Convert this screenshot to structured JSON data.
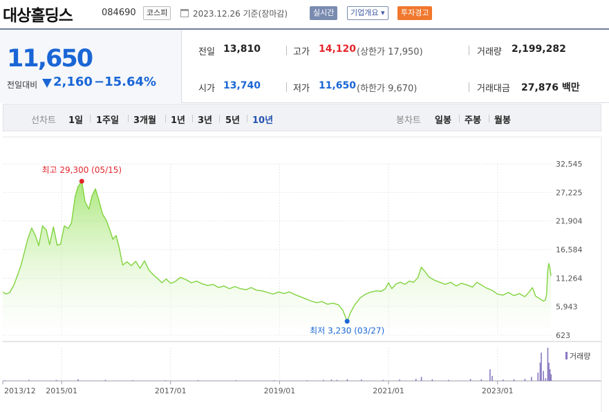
{
  "header": {
    "stock_name": "대상홀딩스",
    "stock_code": "084690",
    "market": "코스피",
    "date_text": "2023.12.26  기준(장마감)",
    "realtime_label": "실시간",
    "company_label": "기업개요 ▾",
    "warning_label": "투자경고"
  },
  "quote": {
    "price": "11,650",
    "prev_label": "전일대비",
    "change": "2,160",
    "change_pct": "−15.64%",
    "prev_close_label": "전일",
    "prev_close": "13,810",
    "high_label": "고가",
    "high": "14,120",
    "upper_limit": "(상한가 17,950)",
    "volume_label": "거래량",
    "volume": "2,199,282",
    "open_label": "시가",
    "open": "13,740",
    "low_label": "저가",
    "low": "11,650",
    "lower_limit": "(하한가 9,670)",
    "amount_label": "거래대금",
    "amount": "27,876 백만"
  },
  "tabs": {
    "line_label": "선차트",
    "periods": [
      "1일",
      "1주일",
      "3개월",
      "1년",
      "3년",
      "5년",
      "10년"
    ],
    "active_period": "10년",
    "candle_label": "봉차트",
    "candles": [
      "일봉",
      "주봉",
      "월봉"
    ]
  },
  "colors": {
    "price_up": "#e3262c",
    "price_down": "#1a66d6",
    "line": "#7fd33d",
    "area_top": "#9be35a",
    "volume": "#8878c0"
  },
  "chart_data": {
    "type": "area",
    "y_ticks": [
      "32,545",
      "27,225",
      "21,904",
      "16,584",
      "11,264",
      "5,943",
      "623"
    ],
    "ylim": [
      623,
      32545
    ],
    "x_ticks": [
      {
        "label": "2013/12",
        "t": 2013.92
      },
      {
        "label": "2015/01",
        "t": 2015.0
      },
      {
        "label": "2017/01",
        "t": 2017.0
      },
      {
        "label": "2019/01",
        "t": 2019.0
      },
      {
        "label": "2021/01",
        "t": 2021.0
      },
      {
        "label": "2023/01",
        "t": 2023.0
      }
    ],
    "x_range": [
      2013.92,
      2023.98
    ],
    "high_annotation": {
      "label": "최고 29,300 (05/15)",
      "t": 2015.37,
      "v": 29300
    },
    "low_annotation": {
      "label": "최저 3,230 (03/27)",
      "t": 2020.24,
      "v": 3230
    },
    "volume_legend": "거래량",
    "series": [
      {
        "values": [
          [
            2013.92,
            8700
          ],
          [
            2013.98,
            8300
          ],
          [
            2014.05,
            8600
          ],
          [
            2014.12,
            9900
          ],
          [
            2014.18,
            11500
          ],
          [
            2014.25,
            13500
          ],
          [
            2014.32,
            16200
          ],
          [
            2014.38,
            18600
          ],
          [
            2014.45,
            20600
          ],
          [
            2014.52,
            19200
          ],
          [
            2014.58,
            17300
          ],
          [
            2014.65,
            21000
          ],
          [
            2014.72,
            20200
          ],
          [
            2014.78,
            17500
          ],
          [
            2014.85,
            20800
          ],
          [
            2014.92,
            17400
          ],
          [
            2014.98,
            17600
          ],
          [
            2015.05,
            21000
          ],
          [
            2015.12,
            20500
          ],
          [
            2015.18,
            21500
          ],
          [
            2015.25,
            26500
          ],
          [
            2015.3,
            28300
          ],
          [
            2015.37,
            29300
          ],
          [
            2015.43,
            25500
          ],
          [
            2015.5,
            24100
          ],
          [
            2015.56,
            26600
          ],
          [
            2015.62,
            27900
          ],
          [
            2015.68,
            25900
          ],
          [
            2015.75,
            23200
          ],
          [
            2015.82,
            22000
          ],
          [
            2015.88,
            20400
          ],
          [
            2015.94,
            18500
          ],
          [
            2016.0,
            19200
          ],
          [
            2016.06,
            16800
          ],
          [
            2016.12,
            13700
          ],
          [
            2016.2,
            14300
          ],
          [
            2016.28,
            13600
          ],
          [
            2016.36,
            14400
          ],
          [
            2016.44,
            13100
          ],
          [
            2016.52,
            14500
          ],
          [
            2016.6,
            12800
          ],
          [
            2016.68,
            11900
          ],
          [
            2016.76,
            11200
          ],
          [
            2016.84,
            10400
          ],
          [
            2016.92,
            11100
          ],
          [
            2017.0,
            10300
          ],
          [
            2017.08,
            10600
          ],
          [
            2017.18,
            11400
          ],
          [
            2017.28,
            11000
          ],
          [
            2017.38,
            10400
          ],
          [
            2017.48,
            10700
          ],
          [
            2017.58,
            10200
          ],
          [
            2017.68,
            9900
          ],
          [
            2017.78,
            10100
          ],
          [
            2017.88,
            9500
          ],
          [
            2017.98,
            9800
          ],
          [
            2018.08,
            9300
          ],
          [
            2018.18,
            9700
          ],
          [
            2018.28,
            9300
          ],
          [
            2018.38,
            9100
          ],
          [
            2018.48,
            9500
          ],
          [
            2018.58,
            9000
          ],
          [
            2018.68,
            8900
          ],
          [
            2018.78,
            8600
          ],
          [
            2018.88,
            8300
          ],
          [
            2018.98,
            8700
          ],
          [
            2019.08,
            8400
          ],
          [
            2019.18,
            8700
          ],
          [
            2019.28,
            8200
          ],
          [
            2019.38,
            7800
          ],
          [
            2019.48,
            7400
          ],
          [
            2019.58,
            7000
          ],
          [
            2019.68,
            6700
          ],
          [
            2019.78,
            6900
          ],
          [
            2019.88,
            6400
          ],
          [
            2019.98,
            6600
          ],
          [
            2020.08,
            6300
          ],
          [
            2020.16,
            5300
          ],
          [
            2020.24,
            3230
          ],
          [
            2020.3,
            4800
          ],
          [
            2020.38,
            6300
          ],
          [
            2020.48,
            7600
          ],
          [
            2020.58,
            8300
          ],
          [
            2020.68,
            8700
          ],
          [
            2020.78,
            8900
          ],
          [
            2020.86,
            8800
          ],
          [
            2020.94,
            9300
          ],
          [
            2021.0,
            10400
          ],
          [
            2021.06,
            9300
          ],
          [
            2021.14,
            10200
          ],
          [
            2021.22,
            10500
          ],
          [
            2021.3,
            10100
          ],
          [
            2021.38,
            10700
          ],
          [
            2021.46,
            10500
          ],
          [
            2021.54,
            11400
          ],
          [
            2021.6,
            13300
          ],
          [
            2021.66,
            12600
          ],
          [
            2021.74,
            11500
          ],
          [
            2021.84,
            10900
          ],
          [
            2021.94,
            10500
          ],
          [
            2022.04,
            10100
          ],
          [
            2022.14,
            10500
          ],
          [
            2022.24,
            9800
          ],
          [
            2022.34,
            10300
          ],
          [
            2022.44,
            10000
          ],
          [
            2022.54,
            9600
          ],
          [
            2022.62,
            10500
          ],
          [
            2022.7,
            10000
          ],
          [
            2022.8,
            9400
          ],
          [
            2022.9,
            9000
          ],
          [
            2023.0,
            8300
          ],
          [
            2023.1,
            8100
          ],
          [
            2023.2,
            8600
          ],
          [
            2023.3,
            8000
          ],
          [
            2023.4,
            8400
          ],
          [
            2023.5,
            7800
          ],
          [
            2023.58,
            8700
          ],
          [
            2023.64,
            9500
          ],
          [
            2023.7,
            7900
          ],
          [
            2023.78,
            7400
          ],
          [
            2023.84,
            7000
          ],
          [
            2023.88,
            7200
          ],
          [
            2023.9,
            8200
          ],
          [
            2023.92,
            12500
          ],
          [
            2023.94,
            14000
          ],
          [
            2023.96,
            13300
          ],
          [
            2023.98,
            11650
          ]
        ]
      }
    ],
    "volume": [
      [
        2013.95,
        0.02
      ],
      [
        2014.4,
        0.03
      ],
      [
        2014.9,
        0.03
      ],
      [
        2015.3,
        0.05
      ],
      [
        2015.8,
        0.03
      ],
      [
        2016.3,
        0.02
      ],
      [
        2016.9,
        0.02
      ],
      [
        2017.5,
        0.02
      ],
      [
        2018.2,
        0.02
      ],
      [
        2018.9,
        0.02
      ],
      [
        2019.5,
        0.02
      ],
      [
        2019.8,
        0.03
      ],
      [
        2019.95,
        0.04
      ],
      [
        2020.05,
        0.03
      ],
      [
        2020.24,
        0.05
      ],
      [
        2020.5,
        0.04
      ],
      [
        2020.9,
        0.03
      ],
      [
        2021.2,
        0.04
      ],
      [
        2021.5,
        0.06
      ],
      [
        2021.6,
        0.12
      ],
      [
        2021.8,
        0.05
      ],
      [
        2022.1,
        0.03
      ],
      [
        2022.5,
        0.06
      ],
      [
        2022.7,
        0.05
      ],
      [
        2022.86,
        0.35
      ],
      [
        2022.9,
        0.15
      ],
      [
        2023.1,
        0.04
      ],
      [
        2023.3,
        0.05
      ],
      [
        2023.5,
        0.06
      ],
      [
        2023.62,
        0.12
      ],
      [
        2023.74,
        0.25
      ],
      [
        2023.78,
        0.55
      ],
      [
        2023.8,
        0.85
      ],
      [
        2023.84,
        0.3
      ],
      [
        2023.88,
        0.08
      ],
      [
        2023.92,
        1.0
      ],
      [
        2023.94,
        0.55
      ],
      [
        2023.96,
        0.35
      ],
      [
        2023.98,
        0.2
      ]
    ]
  }
}
